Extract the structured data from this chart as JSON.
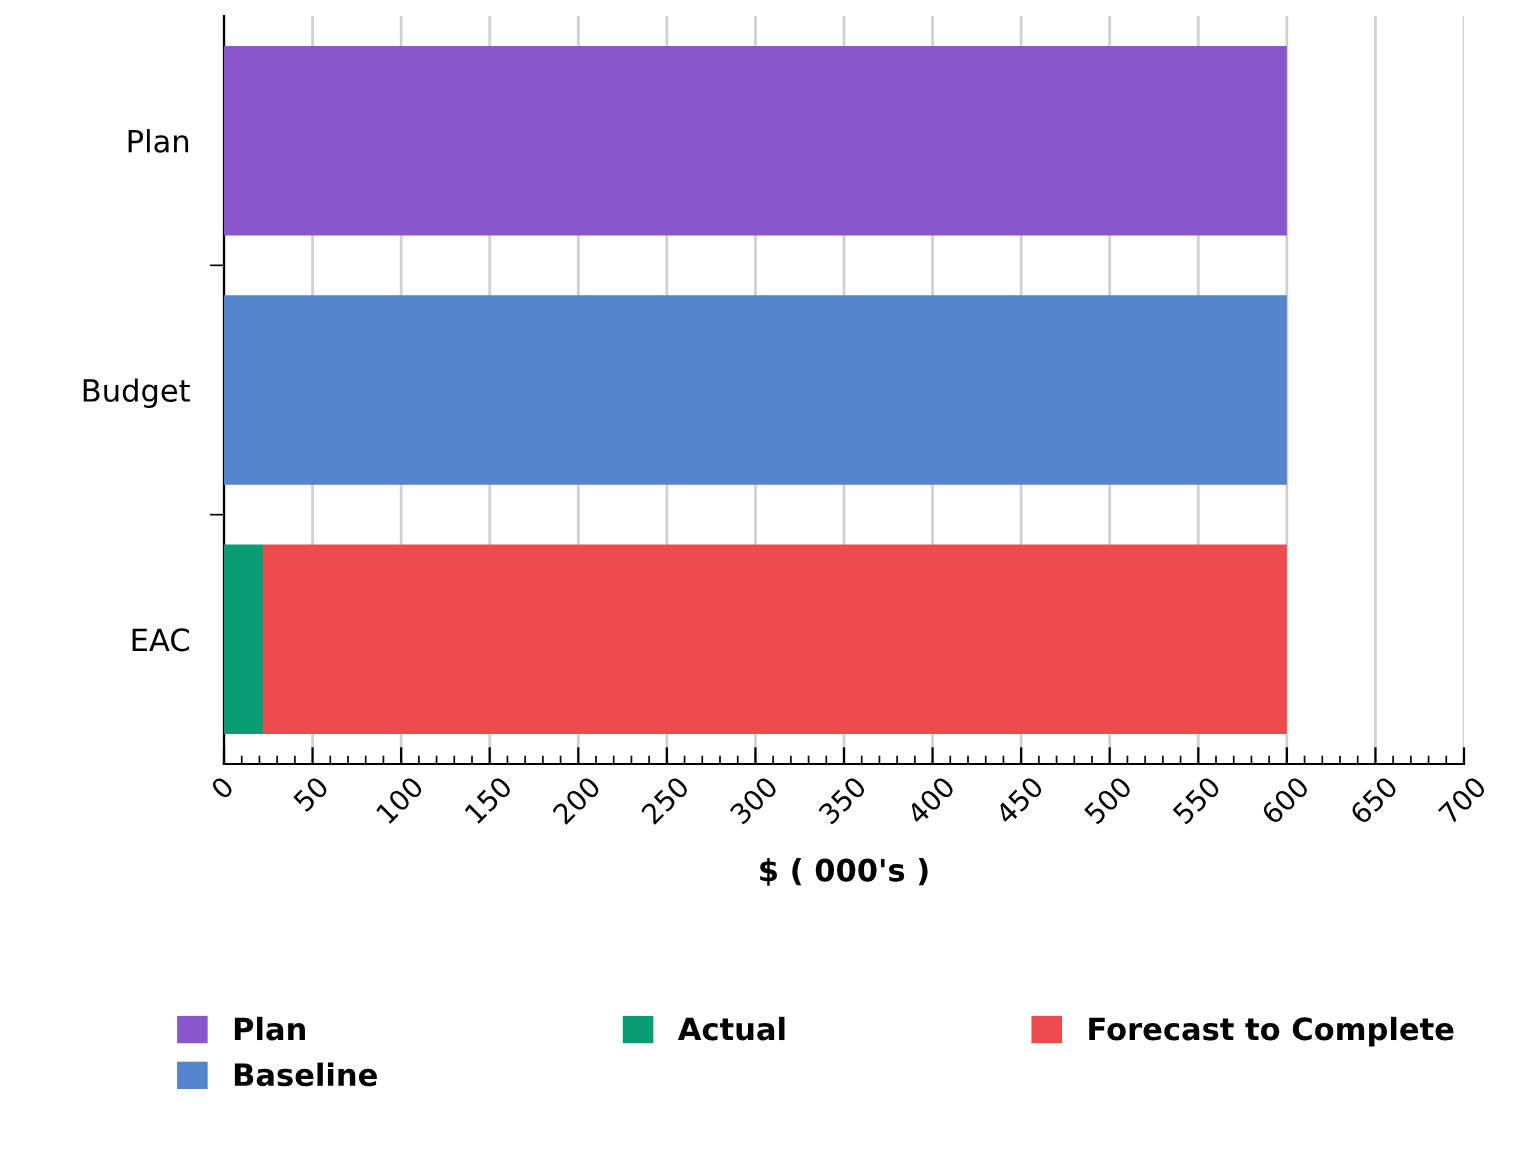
{
  "chart_data": {
    "type": "bar",
    "orientation": "horizontal",
    "stacked": true,
    "xlabel": "$ ( 000's )",
    "categories": [
      "Plan",
      "Budget",
      "EAC"
    ],
    "series": [
      {
        "name": "Plan",
        "color": "#8a56cc",
        "values": [
          600,
          null,
          null
        ]
      },
      {
        "name": "Baseline",
        "color": "#5585cc",
        "values": [
          null,
          600,
          null
        ]
      },
      {
        "name": "Actual",
        "color": "#0a9d73",
        "values": [
          null,
          null,
          22
        ]
      },
      {
        "name": "Forecast to Complete",
        "color": "#ee4b4e",
        "values": [
          null,
          null,
          578
        ]
      }
    ],
    "xlim": [
      0,
      700
    ],
    "xticks": [
      0,
      50,
      100,
      150,
      200,
      250,
      300,
      350,
      400,
      450,
      500,
      550,
      600,
      650,
      700
    ],
    "grid": "x",
    "legend": "bottom"
  }
}
